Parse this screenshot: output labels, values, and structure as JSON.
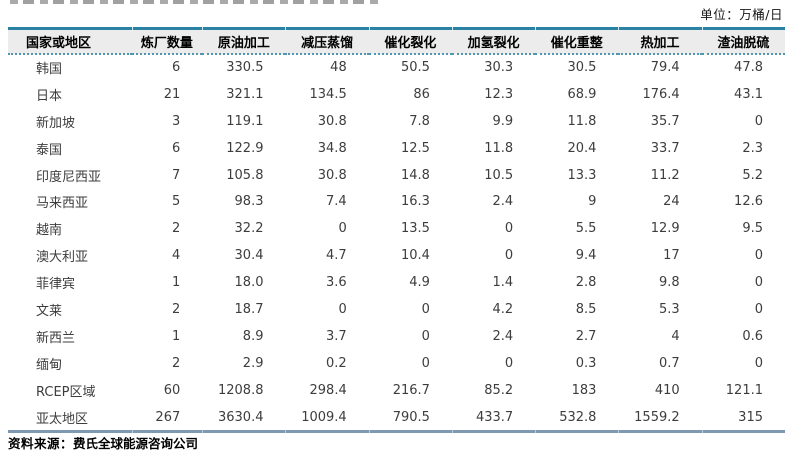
{
  "unit_label": "单位：万桶/日",
  "table": {
    "columns": [
      "国家或地区",
      "炼厂数量",
      "原油加工",
      "减压蒸馏",
      "催化裂化",
      "加氢裂化",
      "催化重整",
      "热加工",
      "渣油脱硫"
    ],
    "rows": [
      [
        "韩国",
        "6",
        "330.5",
        "48",
        "50.5",
        "30.3",
        "30.5",
        "79.4",
        "47.8"
      ],
      [
        "日本",
        "21",
        "321.1",
        "134.5",
        "86",
        "12.3",
        "68.9",
        "176.4",
        "43.1"
      ],
      [
        "新加坡",
        "3",
        "119.1",
        "30.8",
        "7.8",
        "9.9",
        "11.8",
        "35.7",
        "0"
      ],
      [
        "泰国",
        "6",
        "122.9",
        "34.8",
        "12.5",
        "11.8",
        "20.4",
        "33.7",
        "2.3"
      ],
      [
        "印度尼西亚",
        "7",
        "105.8",
        "30.8",
        "14.8",
        "10.5",
        "13.3",
        "11.2",
        "5.2"
      ],
      [
        "马来西亚",
        "5",
        "98.3",
        "7.4",
        "16.3",
        "2.4",
        "9",
        "24",
        "12.6"
      ],
      [
        "越南",
        "2",
        "32.2",
        "0",
        "13.5",
        "0",
        "5.5",
        "12.9",
        "9.5"
      ],
      [
        "澳大利亚",
        "4",
        "30.4",
        "4.7",
        "10.4",
        "0",
        "9.4",
        "17",
        "0"
      ],
      [
        "菲律宾",
        "1",
        "18.0",
        "3.6",
        "4.9",
        "1.4",
        "2.8",
        "9.8",
        "0"
      ],
      [
        "文莱",
        "2",
        "18.7",
        "0",
        "0",
        "4.2",
        "8.5",
        "5.3",
        "0"
      ],
      [
        "新西兰",
        "1",
        "8.9",
        "3.7",
        "0",
        "2.4",
        "2.7",
        "4",
        "0.6"
      ],
      [
        "缅甸",
        "2",
        "2.9",
        "0.2",
        "0",
        "0",
        "0.3",
        "0.7",
        "0"
      ],
      [
        "RCEP区域",
        "60",
        "1208.8",
        "298.4",
        "216.7",
        "85.2",
        "183",
        "410",
        "121.1"
      ],
      [
        "亚太地区",
        "267",
        "3630.4",
        "1009.4",
        "790.5",
        "433.7",
        "532.8",
        "1559.2",
        "315"
      ]
    ]
  },
  "source": {
    "label": "资料来源：",
    "value": "费氏全球能源咨询公司"
  },
  "colors": {
    "table_top_border": "#2a81a1",
    "header_background": "#ececec",
    "header_dotted_rule": "#4f97b0",
    "table_bottom_border": "#7e9ab3",
    "body_text": "#3d3d3d"
  }
}
